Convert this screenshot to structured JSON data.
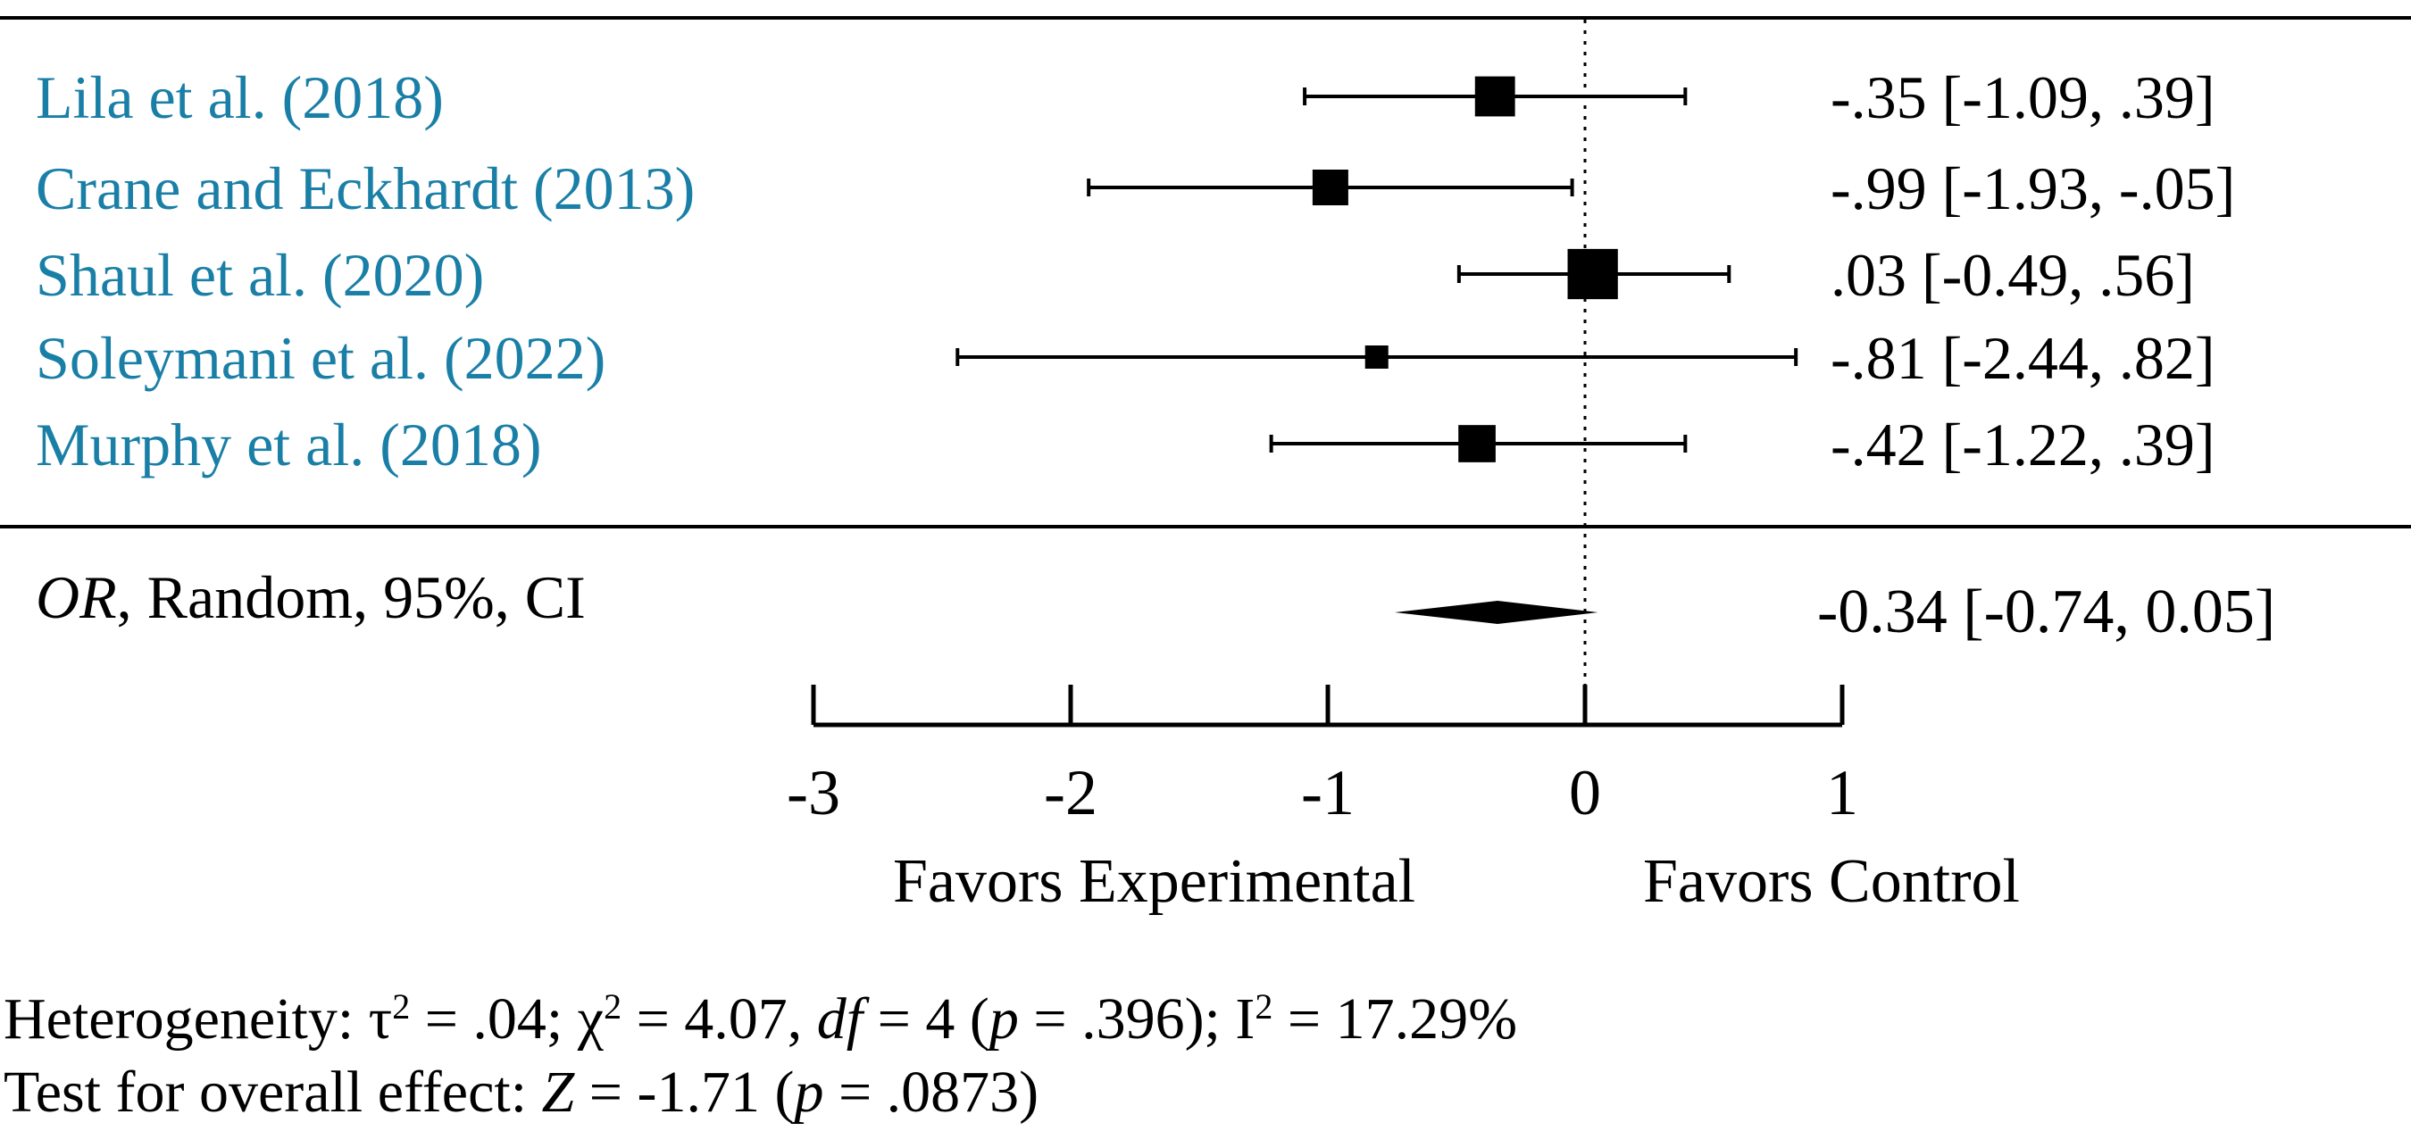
{
  "colors": {
    "study_label": "#1a7fa6",
    "ink": "#000000",
    "background": "#ffffff"
  },
  "chart_data": {
    "type": "forest",
    "xlim": [
      -3,
      1
    ],
    "x_ticks": [
      "-3",
      "-2",
      "-1",
      "0",
      "1"
    ],
    "reference_line": 0,
    "grid": false,
    "studies": [
      {
        "label": "Lila et al. (2018)",
        "est": -0.35,
        "low": -1.09,
        "high": 0.39,
        "weight": 0.22,
        "ci_text": "-.35 [-1.09, .39]"
      },
      {
        "label": "Crane and Eckhardt (2013)",
        "est": -0.99,
        "low": -1.93,
        "high": -0.05,
        "weight": 0.16,
        "ci_text": "-.99 [-1.93, -.05]"
      },
      {
        "label": "Shaul et al. (2020)",
        "est": 0.03,
        "low": -0.49,
        "high": 0.56,
        "weight": 0.4,
        "ci_text": ".03 [-0.49, .56]"
      },
      {
        "label": "Soleymani et al. (2022)",
        "est": -0.81,
        "low": -2.44,
        "high": 0.82,
        "weight": 0.04,
        "ci_text": "-.81 [-2.44, .82]"
      },
      {
        "label": "Murphy et al. (2018)",
        "est": -0.42,
        "low": -1.22,
        "high": 0.39,
        "weight": 0.18,
        "ci_text": "-.42 [-1.22, .39]"
      }
    ],
    "pooled": {
      "label_italic": "OR",
      "label_rest": ", Random, 95%, CI",
      "est": -0.34,
      "low": -0.74,
      "high": 0.05,
      "ci_text": "-0.34 [-0.74, 0.05]"
    },
    "favors_left": "Favors Experimental",
    "favors_right": "Favors Control"
  },
  "footer": {
    "heterogeneity": {
      "prefix": "Heterogeneity: ",
      "tau": "τ",
      "sup2": "2",
      "tau_value": " = .04; ",
      "chi": "χ",
      "chi_value": " = 4.07, ",
      "df_label": "df",
      "df_value": " = 4 (",
      "p_label": "p",
      "p_value": " = .396); I",
      "i2_value": " = 17.29%"
    },
    "overall": {
      "prefix": "Test for overall effect: ",
      "z_label": "Z",
      "z_value": " = -1.71 (",
      "p_label": "p",
      "p_value": " = .0873)"
    }
  }
}
